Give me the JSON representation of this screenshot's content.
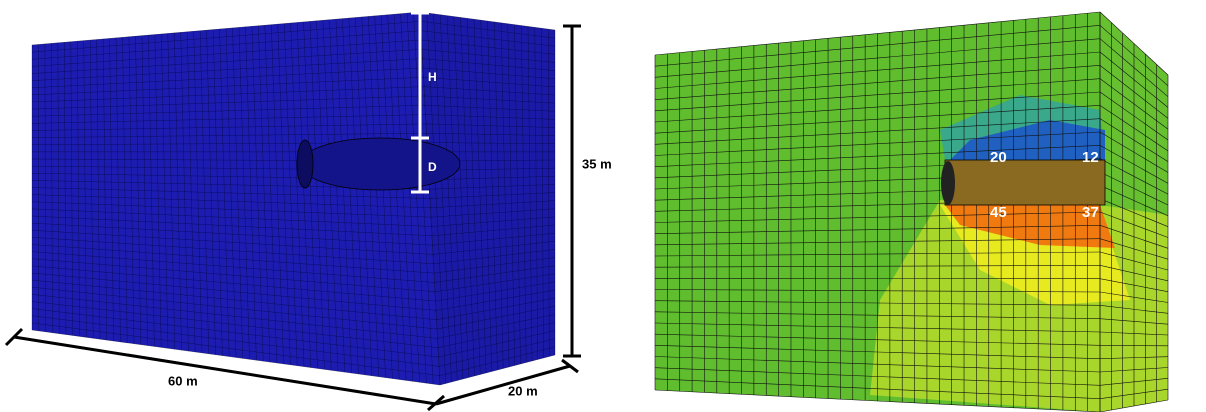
{
  "left_panel": {
    "labels": {
      "h": "H",
      "d": "D",
      "height": "35 m",
      "length": "60 m",
      "width": "20 m"
    }
  },
  "right_panel": {
    "contour_labels": {
      "top_front": "20",
      "top_back": "12",
      "bottom_front": "45",
      "bottom_back": "37"
    }
  }
}
